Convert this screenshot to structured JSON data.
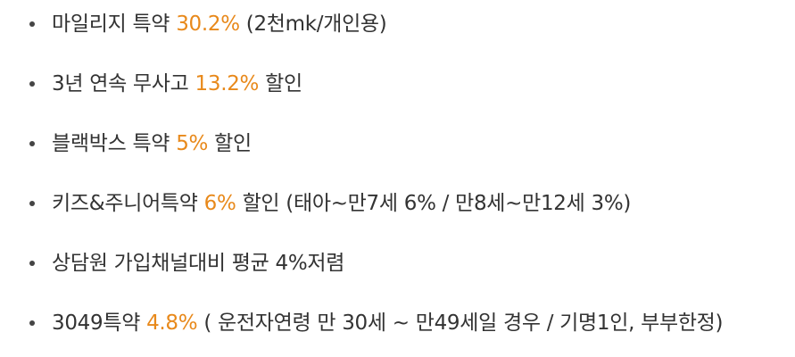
{
  "colors": {
    "text": "#333333",
    "highlight": "#e8891b",
    "bullet": "#444444"
  },
  "items": [
    {
      "before": "마일리지 특약 ",
      "highlight": "30.2%",
      "after": " (2천mk/개인용)"
    },
    {
      "before": "3년 연속 무사고 ",
      "highlight": "13.2%",
      "after": " 할인"
    },
    {
      "before": "블랙박스 특약 ",
      "highlight": "5%",
      "after": " 할인"
    },
    {
      "before": "키즈&주니어특약 ",
      "highlight": "6%",
      "after": " 할인 (태아~만7세 6% / 만8세~만12세 3%)"
    },
    {
      "before": "상담원 가입채널대비 평균 4%저렴",
      "highlight": "",
      "after": ""
    },
    {
      "before": "3049특약 ",
      "highlight": "4.8%",
      "after": " ( 운전자연령 만 30세 ~ 만49세일 경우 / 기명1인, 부부한정)"
    }
  ]
}
